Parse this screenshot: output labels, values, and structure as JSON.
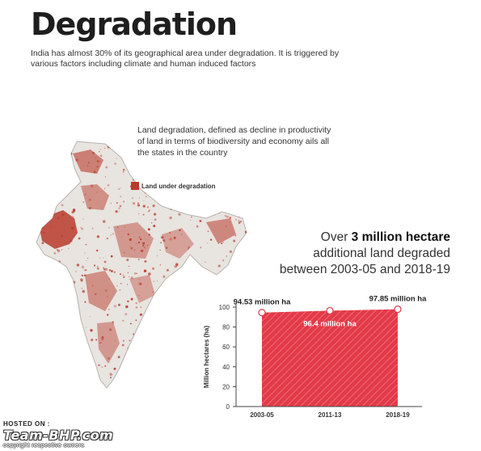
{
  "page": {
    "title": "Degradation",
    "intro": "India has almost 30% of its geographical area under degradation. It is triggered by various factors including climate and human induced factors",
    "map_note": "Land degradation, defined as decline in productivity of land in terms of  biodiversity and economy ails all the states in the country",
    "legend_label": "Land under degradation",
    "headline_pre": "Over ",
    "headline_bold": "3 million hectare",
    "headline_line2": "additional land degraded",
    "headline_line3": "between 2003-05 and 2018-19"
  },
  "watermark": {
    "hosted": "HOSTED ON :",
    "brand": "Team-BHP.com",
    "copyright": "copyright respective owners"
  },
  "colors": {
    "degradation": "#b83b2c",
    "bar": "#e23a48",
    "bar_stripe": "#f06a74",
    "map_land": "#e8e4e0"
  },
  "chart_data": {
    "type": "area",
    "x": [
      "2003-05",
      "2011-13",
      "2018-19"
    ],
    "values": [
      94.53,
      96.4,
      97.85
    ],
    "data_labels": [
      "94.53 million ha",
      "96.4 million ha",
      "97.85 million ha"
    ],
    "ylabel": "Million hectares (ha)",
    "ylim": [
      0,
      100
    ],
    "yticks": [
      0,
      20,
      40,
      60,
      80,
      100
    ],
    "grid": false
  }
}
